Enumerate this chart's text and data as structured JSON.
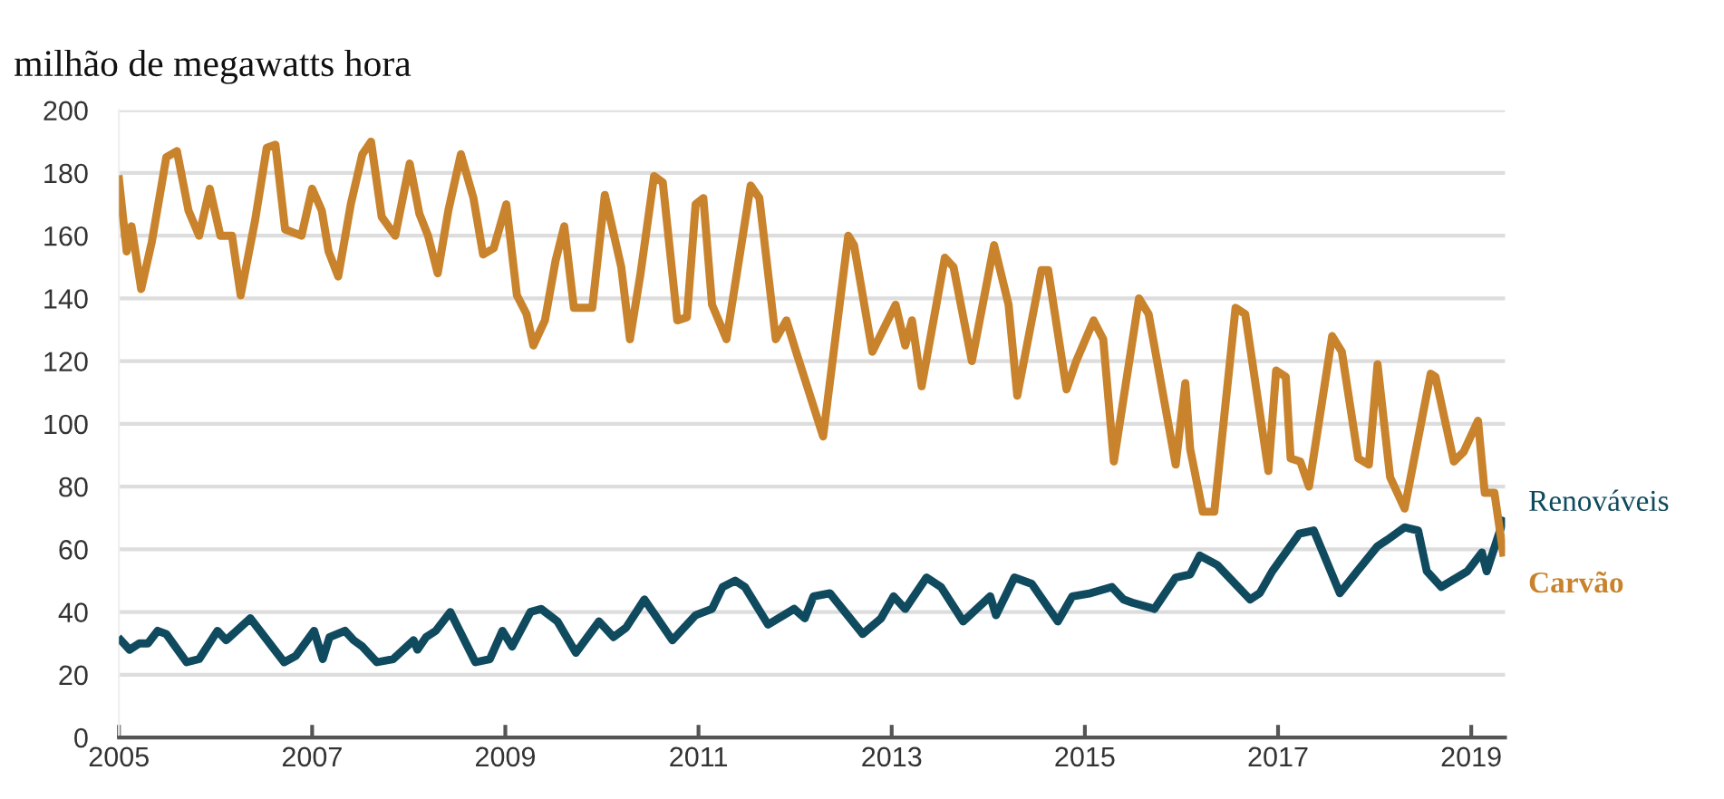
{
  "chart_data": {
    "type": "line",
    "title": "milhão de megawatts hora",
    "xlim": [
      2005,
      2019.35
    ],
    "xticks": [
      2005,
      2007,
      2009,
      2011,
      2013,
      2015,
      2017,
      2019
    ],
    "ylim": [
      0,
      200
    ],
    "yticks": [
      0,
      20,
      40,
      60,
      80,
      100,
      120,
      140,
      160,
      180,
      200
    ],
    "grid": "y",
    "legend": false,
    "series": [
      {
        "name": "Renováveis",
        "color": "#0f4a5e",
        "x": [
          2005.02,
          2005.11,
          2005.21,
          2005.3,
          2005.4,
          2005.49,
          2005.7,
          2005.83,
          2006.02,
          2006.11,
          2006.36,
          2006.71,
          2006.83,
          2007.02,
          2007.11,
          2007.18,
          2007.34,
          2007.43,
          2007.52,
          2007.67,
          2007.84,
          2008.05,
          2008.09,
          2008.18,
          2008.28,
          2008.43,
          2008.69,
          2008.84,
          2008.97,
          2009.07,
          2009.26,
          2009.37,
          2009.54,
          2009.73,
          2009.97,
          2010.12,
          2010.25,
          2010.44,
          2010.73,
          2010.97,
          2011.14,
          2011.25,
          2011.38,
          2011.48,
          2011.72,
          2011.99,
          2012.1,
          2012.19,
          2012.36,
          2012.7,
          2012.89,
          2013.02,
          2013.14,
          2013.36,
          2013.51,
          2013.74,
          2014.02,
          2014.08,
          2014.27,
          2014.45,
          2014.72,
          2014.87,
          2015.06,
          2015.28,
          2015.4,
          2015.49,
          2015.72,
          2015.94,
          2016.09,
          2016.19,
          2016.37,
          2016.71,
          2016.81,
          2016.94,
          2017.22,
          2017.37,
          2017.64,
          2017.82,
          2018.03,
          2018.13,
          2018.31,
          2018.45,
          2018.54,
          2018.69,
          2018.96,
          2019.11,
          2019.16,
          2019.33
        ],
        "values": [
          31,
          28,
          30,
          30,
          34,
          33,
          24,
          25,
          34,
          31,
          38,
          24,
          26,
          34,
          25,
          32,
          34,
          31,
          29,
          24,
          25,
          31,
          28,
          32,
          34,
          40,
          24,
          25,
          34,
          29,
          40,
          41,
          37,
          27,
          37,
          32,
          35,
          44,
          31,
          39,
          41,
          48,
          50,
          48,
          36,
          41,
          38,
          45,
          46,
          33,
          38,
          45,
          41,
          51,
          48,
          37,
          45,
          39,
          51,
          49,
          37,
          45,
          46,
          48,
          44,
          43,
          41,
          51,
          52,
          58,
          55,
          44,
          46,
          53,
          65,
          66,
          46,
          53,
          61,
          63,
          67,
          66,
          53,
          48,
          53,
          59,
          53,
          69
        ]
      },
      {
        "name": "Carvão",
        "color": "#c8832c",
        "x": [
          2005.0,
          2005.08,
          2005.13,
          2005.23,
          2005.34,
          2005.49,
          2005.6,
          2005.72,
          2005.83,
          2005.94,
          2006.05,
          2006.17,
          2006.26,
          2006.41,
          2006.53,
          2006.62,
          2006.72,
          2006.89,
          2007.0,
          2007.1,
          2007.17,
          2007.27,
          2007.4,
          2007.52,
          2007.61,
          2007.72,
          2007.86,
          2008.01,
          2008.11,
          2008.2,
          2008.3,
          2008.41,
          2008.54,
          2008.67,
          2008.77,
          2008.88,
          2009.01,
          2009.12,
          2009.22,
          2009.29,
          2009.41,
          2009.52,
          2009.61,
          2009.71,
          2009.9,
          2010.03,
          2010.2,
          2010.29,
          2010.4,
          2010.54,
          2010.63,
          2010.78,
          2010.88,
          2010.97,
          2011.05,
          2011.14,
          2011.29,
          2011.54,
          2011.63,
          2011.8,
          2011.91,
          2012.01,
          2012.29,
          2012.55,
          2012.61,
          2012.8,
          2013.04,
          2013.14,
          2013.21,
          2013.31,
          2013.55,
          2013.64,
          2013.83,
          2014.06,
          2014.21,
          2014.3,
          2014.55,
          2014.62,
          2014.81,
          2014.91,
          2015.09,
          2015.19,
          2015.3,
          2015.56,
          2015.66,
          2015.94,
          2016.04,
          2016.09,
          2016.22,
          2016.34,
          2016.56,
          2016.66,
          2016.9,
          2016.98,
          2017.08,
          2017.13,
          2017.23,
          2017.32,
          2017.56,
          2017.66,
          2017.83,
          2017.94,
          2018.03,
          2018.16,
          2018.31,
          2018.58,
          2018.63,
          2018.82,
          2018.92,
          2019.07,
          2019.14,
          2019.24,
          2019.33
        ],
        "values": [
          178,
          155,
          163,
          143,
          158,
          185,
          187,
          168,
          160,
          175,
          160,
          160,
          141,
          165,
          188,
          189,
          162,
          160,
          175,
          168,
          155,
          147,
          170,
          186,
          190,
          166,
          160,
          183,
          167,
          160,
          148,
          168,
          186,
          172,
          154,
          156,
          170,
          141,
          135,
          125,
          133,
          152,
          163,
          137,
          137,
          173,
          150,
          127,
          148,
          179,
          177,
          133,
          134,
          170,
          172,
          138,
          127,
          176,
          172,
          127,
          133,
          123,
          96,
          160,
          157,
          123,
          138,
          125,
          133,
          112,
          153,
          150,
          120,
          157,
          138,
          109,
          149,
          149,
          111,
          120,
          133,
          127,
          88,
          140,
          135,
          87,
          113,
          92,
          72,
          72,
          137,
          135,
          85,
          117,
          115,
          89,
          88,
          80,
          128,
          123,
          89,
          87,
          119,
          83,
          73,
          116,
          115,
          88,
          91,
          101,
          78,
          78,
          59
        ]
      }
    ]
  }
}
